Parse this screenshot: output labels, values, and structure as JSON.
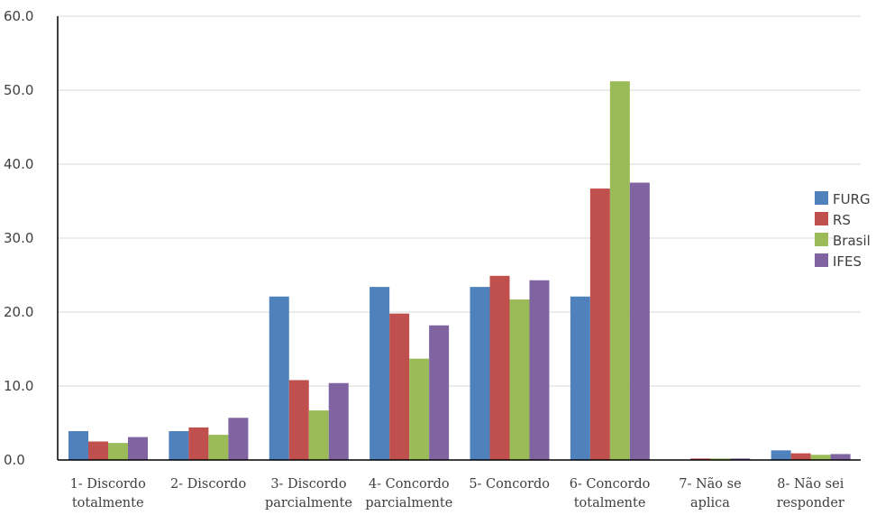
{
  "chart_data": {
    "type": "bar",
    "categories": [
      [
        "1- Discordo",
        "totalmente"
      ],
      [
        "2- Discordo"
      ],
      [
        "3- Discordo",
        "parcialmente"
      ],
      [
        "4- Concordo",
        "parcialmente"
      ],
      [
        "5- Concordo"
      ],
      [
        "6- Concordo",
        "totalmente"
      ],
      [
        "7- Não se",
        "aplica"
      ],
      [
        "8- Não sei",
        "responder"
      ]
    ],
    "series": [
      {
        "name": "FURG",
        "color": "#4f81bd",
        "values": [
          3.9,
          3.9,
          22.1,
          23.4,
          23.4,
          22.1,
          0.0,
          1.3
        ]
      },
      {
        "name": "RS",
        "color": "#c0504d",
        "values": [
          2.5,
          4.4,
          10.8,
          19.8,
          24.9,
          36.7,
          0.2,
          0.9
        ]
      },
      {
        "name": "Brasil",
        "color": "#9bbb59",
        "values": [
          2.3,
          3.4,
          6.7,
          13.7,
          21.7,
          51.2,
          0.2,
          0.7
        ]
      },
      {
        "name": "IFES",
        "color": "#8064a2",
        "values": [
          3.1,
          5.7,
          10.4,
          18.2,
          24.3,
          37.5,
          0.2,
          0.8
        ]
      }
    ],
    "ylim": [
      0,
      60
    ],
    "yticks": [
      "0.0",
      "10.0",
      "20.0",
      "30.0",
      "40.0",
      "50.0",
      "60.0"
    ],
    "grid": true,
    "legend_position": "right"
  }
}
